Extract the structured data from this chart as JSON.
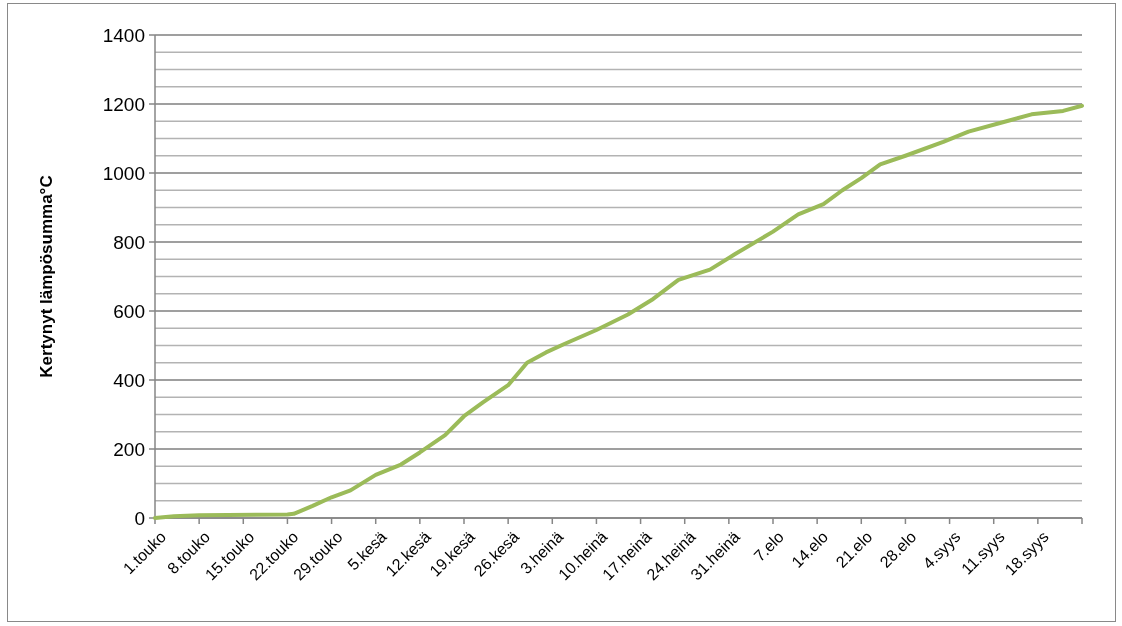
{
  "chart_data": {
    "type": "line",
    "ylabel": "Kertynyt lämpösumma°C",
    "x": [
      "--05-01",
      "--05-04",
      "--05-08",
      "--05-22",
      "--05-23",
      "--05-26",
      "--05-29",
      "--06-01",
      "--06-05",
      "--06-09",
      "--06-12",
      "--06-16",
      "--06-19",
      "--06-22",
      "--06-26",
      "--06-29",
      "--07-02",
      "--07-05",
      "--07-10",
      "--07-15",
      "--07-19",
      "--07-23",
      "--07-28",
      "--08-01",
      "--08-07",
      "--08-11",
      "--08-15",
      "--08-18",
      "--08-21",
      "--08-24",
      "--08-28",
      "--09-03",
      "--09-07",
      "--09-12",
      "--09-17",
      "--09-22",
      "--09-25"
    ],
    "series": [
      {
        "color": "#9bbb59",
        "values": [
          0,
          5,
          8,
          10,
          12,
          35,
          60,
          80,
          125,
          155,
          190,
          240,
          295,
          335,
          385,
          450,
          480,
          505,
          545,
          590,
          635,
          690,
          720,
          765,
          830,
          880,
          910,
          950,
          985,
          1025,
          1050,
          1090,
          1120,
          1145,
          1170,
          1180,
          1195
        ]
      }
    ],
    "xlim": [
      "--05-01",
      "--09-25"
    ],
    "xticks": [
      {
        "value": "--05-01",
        "label": "1.touko"
      },
      {
        "value": "--05-08",
        "label": "8.touko"
      },
      {
        "value": "--05-15",
        "label": "15.touko"
      },
      {
        "value": "--05-22",
        "label": "22.touko"
      },
      {
        "value": "--05-29",
        "label": "29.touko"
      },
      {
        "value": "--06-05",
        "label": "5.kesä"
      },
      {
        "value": "--06-12",
        "label": "12.kesä"
      },
      {
        "value": "--06-19",
        "label": "19.kesä"
      },
      {
        "value": "--06-26",
        "label": "26.kesä"
      },
      {
        "value": "--07-03",
        "label": "3.heinä"
      },
      {
        "value": "--07-10",
        "label": "10.heinä"
      },
      {
        "value": "--07-17",
        "label": "17.heinä"
      },
      {
        "value": "--07-24",
        "label": "24.heinä"
      },
      {
        "value": "--07-31",
        "label": "31.heinä"
      },
      {
        "value": "--08-07",
        "label": "7.elo"
      },
      {
        "value": "--08-14",
        "label": "14.elo"
      },
      {
        "value": "--08-21",
        "label": "21.elo"
      },
      {
        "value": "--08-28",
        "label": "28.elo"
      },
      {
        "value": "--09-04",
        "label": "4.syys"
      },
      {
        "value": "--09-11",
        "label": "11.syys"
      },
      {
        "value": "--09-18",
        "label": "18.syys"
      },
      {
        "value": "--09-25",
        "label": null
      }
    ],
    "ylim": [
      0,
      1400
    ],
    "yticks": [
      0,
      {
        "value": 50,
        "label": null
      },
      {
        "value": 100,
        "label": null
      },
      {
        "value": 150,
        "label": null
      },
      200,
      {
        "value": 250,
        "label": null
      },
      {
        "value": 300,
        "label": null
      },
      {
        "value": 350,
        "label": null
      },
      400,
      {
        "value": 450,
        "label": null
      },
      {
        "value": 500,
        "label": null
      },
      {
        "value": 550,
        "label": null
      },
      600,
      {
        "value": 650,
        "label": null
      },
      {
        "value": 700,
        "label": null
      },
      {
        "value": 750,
        "label": null
      },
      800,
      {
        "value": 850,
        "label": null
      },
      {
        "value": 900,
        "label": null
      },
      {
        "value": 950,
        "label": null
      },
      1000,
      {
        "value": 1050,
        "label": null
      },
      {
        "value": 1100,
        "label": null
      },
      {
        "value": 1150,
        "label": null
      },
      1200,
      {
        "value": 1250,
        "label": null
      },
      {
        "value": 1300,
        "label": null
      },
      {
        "value": 1350,
        "label": null
      },
      1400
    ],
    "grid": "y",
    "marker": "none",
    "line_style": "solid"
  }
}
